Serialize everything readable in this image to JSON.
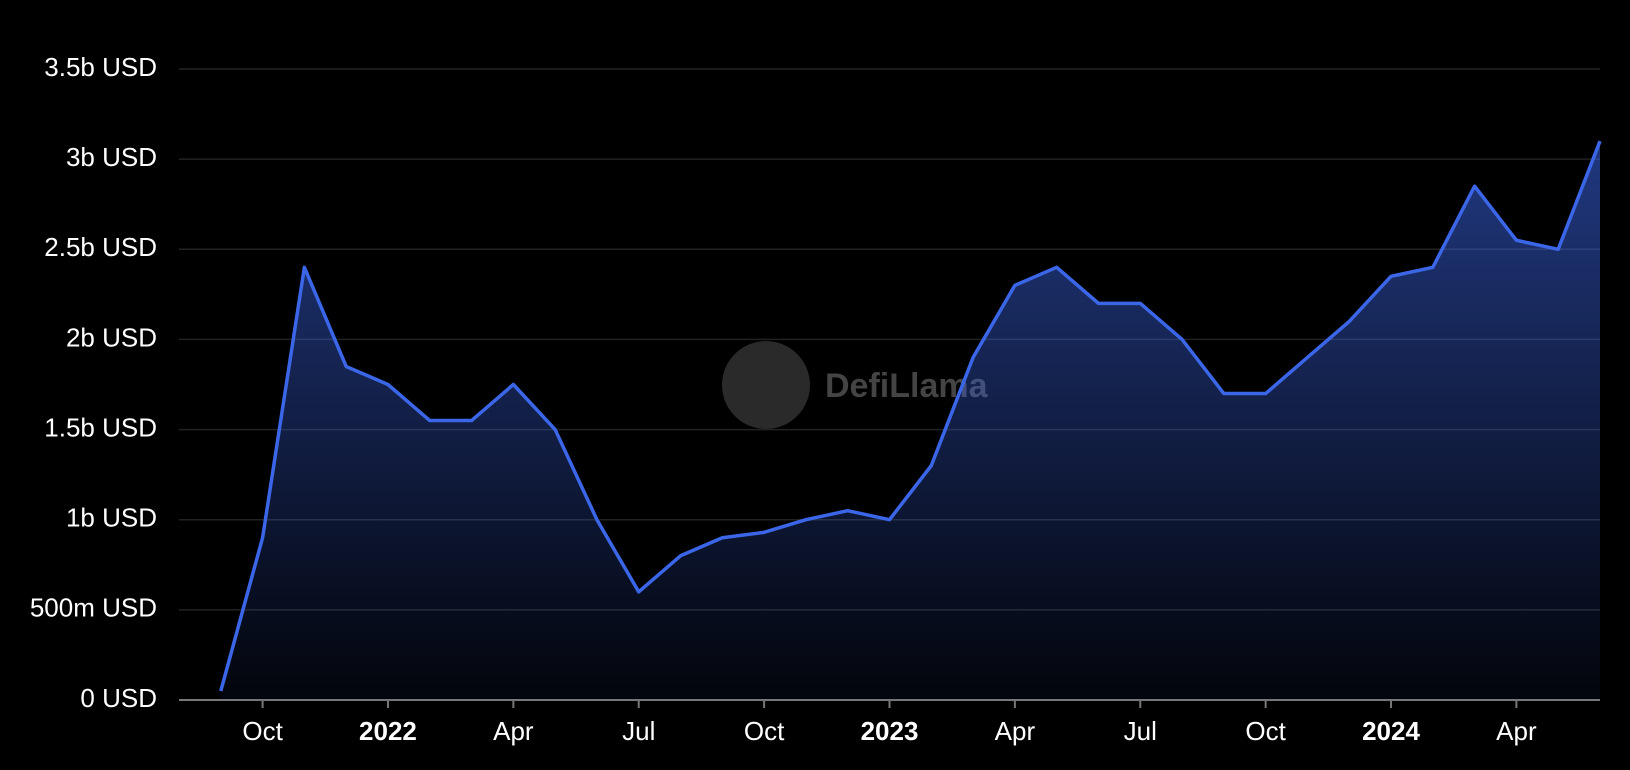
{
  "chart_data": {
    "type": "area",
    "watermark": "DefiLlama",
    "x": [
      "2021-09",
      "2021-10",
      "2021-11",
      "2021-12",
      "2022-01",
      "2022-02",
      "2022-03",
      "2022-04",
      "2022-05",
      "2022-06",
      "2022-07",
      "2022-08",
      "2022-09",
      "2022-10",
      "2022-11",
      "2022-12",
      "2023-01",
      "2023-02",
      "2023-03",
      "2023-04",
      "2023-05",
      "2023-06",
      "2023-07",
      "2023-08",
      "2023-09",
      "2023-10",
      "2023-11",
      "2023-12",
      "2024-01",
      "2024-02",
      "2024-03",
      "2024-04",
      "2024-05",
      "2024-06"
    ],
    "series": [
      {
        "color": "#3b66e8",
        "values": [
          50000000,
          900000000,
          2400000000,
          1850000000,
          1750000000,
          1550000000,
          1550000000,
          1750000000,
          1500000000,
          1000000000,
          600000000,
          800000000,
          900000000,
          930000000,
          1000000000,
          1050000000,
          1000000000,
          1300000000,
          1900000000,
          2300000000,
          2400000000,
          2200000000,
          2200000000,
          2000000000,
          1700000000,
          1700000000,
          1900000000,
          2100000000,
          2350000000,
          2400000000,
          2850000000,
          2550000000,
          2500000000,
          3100000000
        ]
      }
    ],
    "xlim": [
      "2021-08",
      "2024-06"
    ],
    "xticks": [
      {
        "value": "2021-10",
        "label": "Oct"
      },
      {
        "value": "2022-01",
        "label": "2022"
      },
      {
        "value": "2022-04",
        "label": "Apr"
      },
      {
        "value": "2022-07",
        "label": "Jul"
      },
      {
        "value": "2022-10",
        "label": "Oct"
      },
      {
        "value": "2023-01",
        "label": "2023"
      },
      {
        "value": "2023-04",
        "label": "Apr"
      },
      {
        "value": "2023-07",
        "label": "Jul"
      },
      {
        "value": "2023-10",
        "label": "Oct"
      },
      {
        "value": "2024-01",
        "label": "2024"
      },
      {
        "value": "2024-04",
        "label": "Apr"
      }
    ],
    "ylim": [
      0,
      3500000000
    ],
    "yticks": [
      {
        "value": 0,
        "label": "0 USD"
      },
      {
        "value": 500000000,
        "label": "500m USD"
      },
      {
        "value": 1000000000,
        "label": "1b USD"
      },
      {
        "value": 1500000000,
        "label": "1.5b USD"
      },
      {
        "value": 2000000000,
        "label": "2b USD"
      },
      {
        "value": 2500000000,
        "label": "2.5b USD"
      },
      {
        "value": 3000000000,
        "label": "3b USD"
      },
      {
        "value": 3500000000,
        "label": "3.5b USD"
      }
    ],
    "grid": true
  }
}
